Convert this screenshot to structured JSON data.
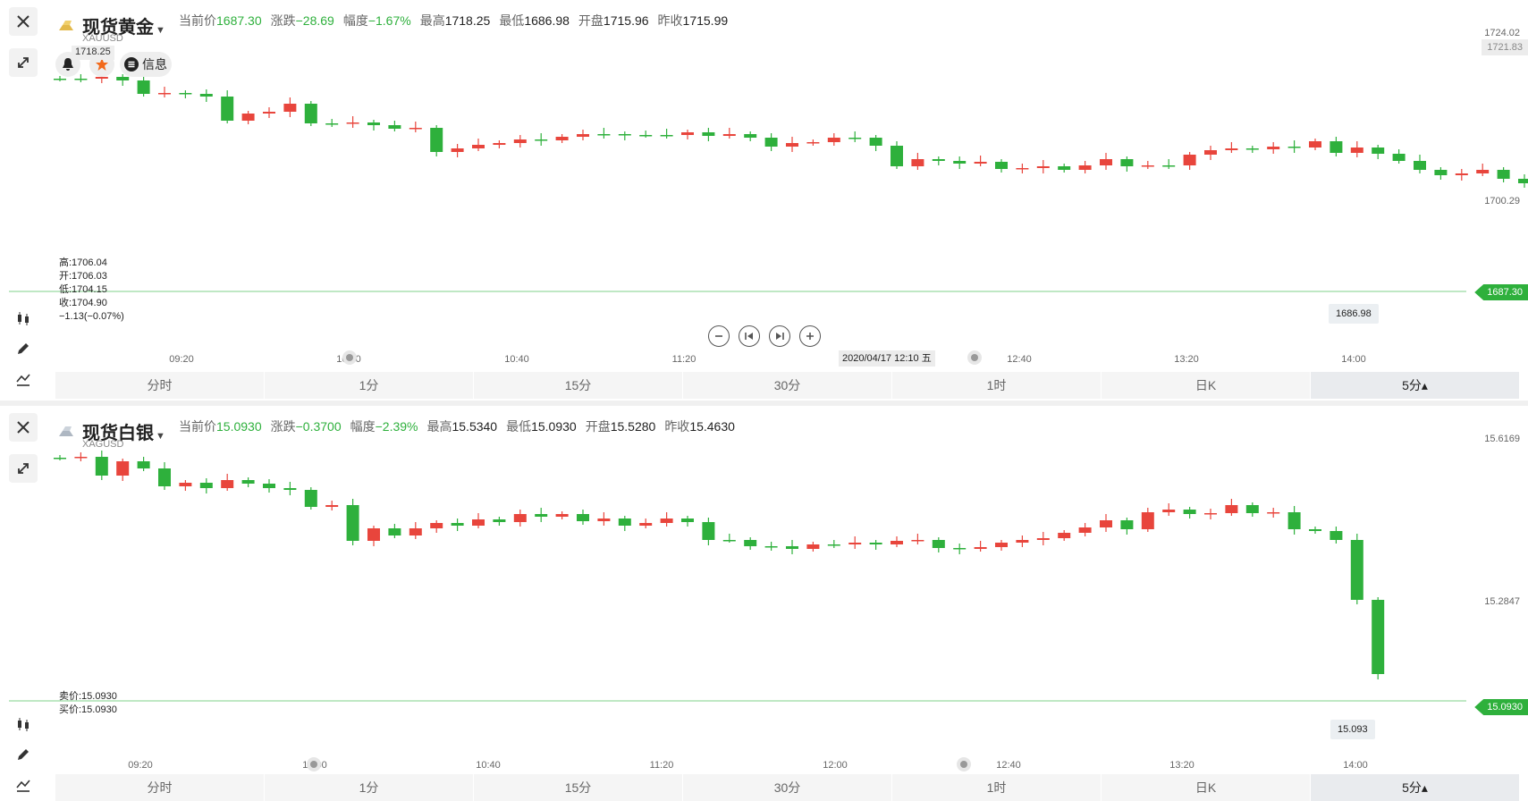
{
  "gold": {
    "name": "现货黄金",
    "code": "XAUUSD",
    "stats": [
      {
        "label": "当前价",
        "value": "1687.30",
        "color": "g"
      },
      {
        "label": "涨跌",
        "value": "−28.69",
        "color": "g"
      },
      {
        "label": "幅度",
        "value": "−1.67%",
        "color": "g"
      },
      {
        "label": "最高",
        "value": "1718.25",
        "color": "k"
      },
      {
        "label": "最低",
        "value": "1686.98",
        "color": "k"
      },
      {
        "label": "开盘",
        "value": "1715.96",
        "color": "k"
      },
      {
        "label": "昨收",
        "value": "1715.99",
        "color": "k"
      }
    ],
    "high_marker": "1718.25",
    "info_label": "信息",
    "axis": {
      "top": "1724.02",
      "top_tag": "1721.83",
      "mid": "1700.29",
      "current": "1687.30"
    },
    "ohlc_lines": [
      "高:1706.04",
      "开:1706.03",
      "低:1704.15",
      "收:1704.90",
      "−1.13(−0.07%)"
    ],
    "last_low": "1686.98",
    "time_labels": [
      "09:20",
      "10:00",
      "10:40",
      "11:20",
      "12:40",
      "13:20",
      "14:00"
    ],
    "crosshair_date": "2020/04/17 12:10 五"
  },
  "silver": {
    "name": "现货白银",
    "code": "XAGUSD",
    "stats": [
      {
        "label": "当前价",
        "value": "15.0930",
        "color": "g"
      },
      {
        "label": "涨跌",
        "value": "−0.3700",
        "color": "g"
      },
      {
        "label": "幅度",
        "value": "−2.39%",
        "color": "g"
      },
      {
        "label": "最高",
        "value": "15.5340",
        "color": "k"
      },
      {
        "label": "最低",
        "value": "15.0930",
        "color": "k"
      },
      {
        "label": "开盘",
        "value": "15.5280",
        "color": "k"
      },
      {
        "label": "昨收",
        "value": "15.4630",
        "color": "k"
      }
    ],
    "axis": {
      "top": "15.6169",
      "mid": "15.2847",
      "current": "15.0930"
    },
    "bid_ask_lines": [
      "卖价:15.0930",
      "买价:15.0930"
    ],
    "last_low": "15.093",
    "time_labels": [
      "09:20",
      "10:00",
      "10:40",
      "11:20",
      "12:00",
      "12:40",
      "13:20",
      "14:00"
    ]
  },
  "tabs": [
    "分时",
    "1分",
    "15分",
    "30分",
    "1时",
    "日K",
    "5分▴"
  ],
  "colors": {
    "up": "#e8453c",
    "down": "#2eb03c",
    "accent": "#2eb03c"
  },
  "chart_data": [
    {
      "type": "candlestick",
      "title": "现货黄金",
      "x": [
        "09:20",
        "10:00",
        "10:40",
        "11:20",
        "12:40",
        "13:20",
        "14:00"
      ],
      "ylim": [
        1686.98,
        1724.02
      ],
      "current": 1687.3,
      "low": 1686.98
    },
    {
      "type": "candlestick",
      "title": "现货白银",
      "x": [
        "09:20",
        "10:00",
        "10:40",
        "11:20",
        "12:00",
        "12:40",
        "13:20",
        "14:00"
      ],
      "ylim": [
        15.093,
        15.6169
      ],
      "current": 15.093,
      "low": 15.093
    }
  ]
}
